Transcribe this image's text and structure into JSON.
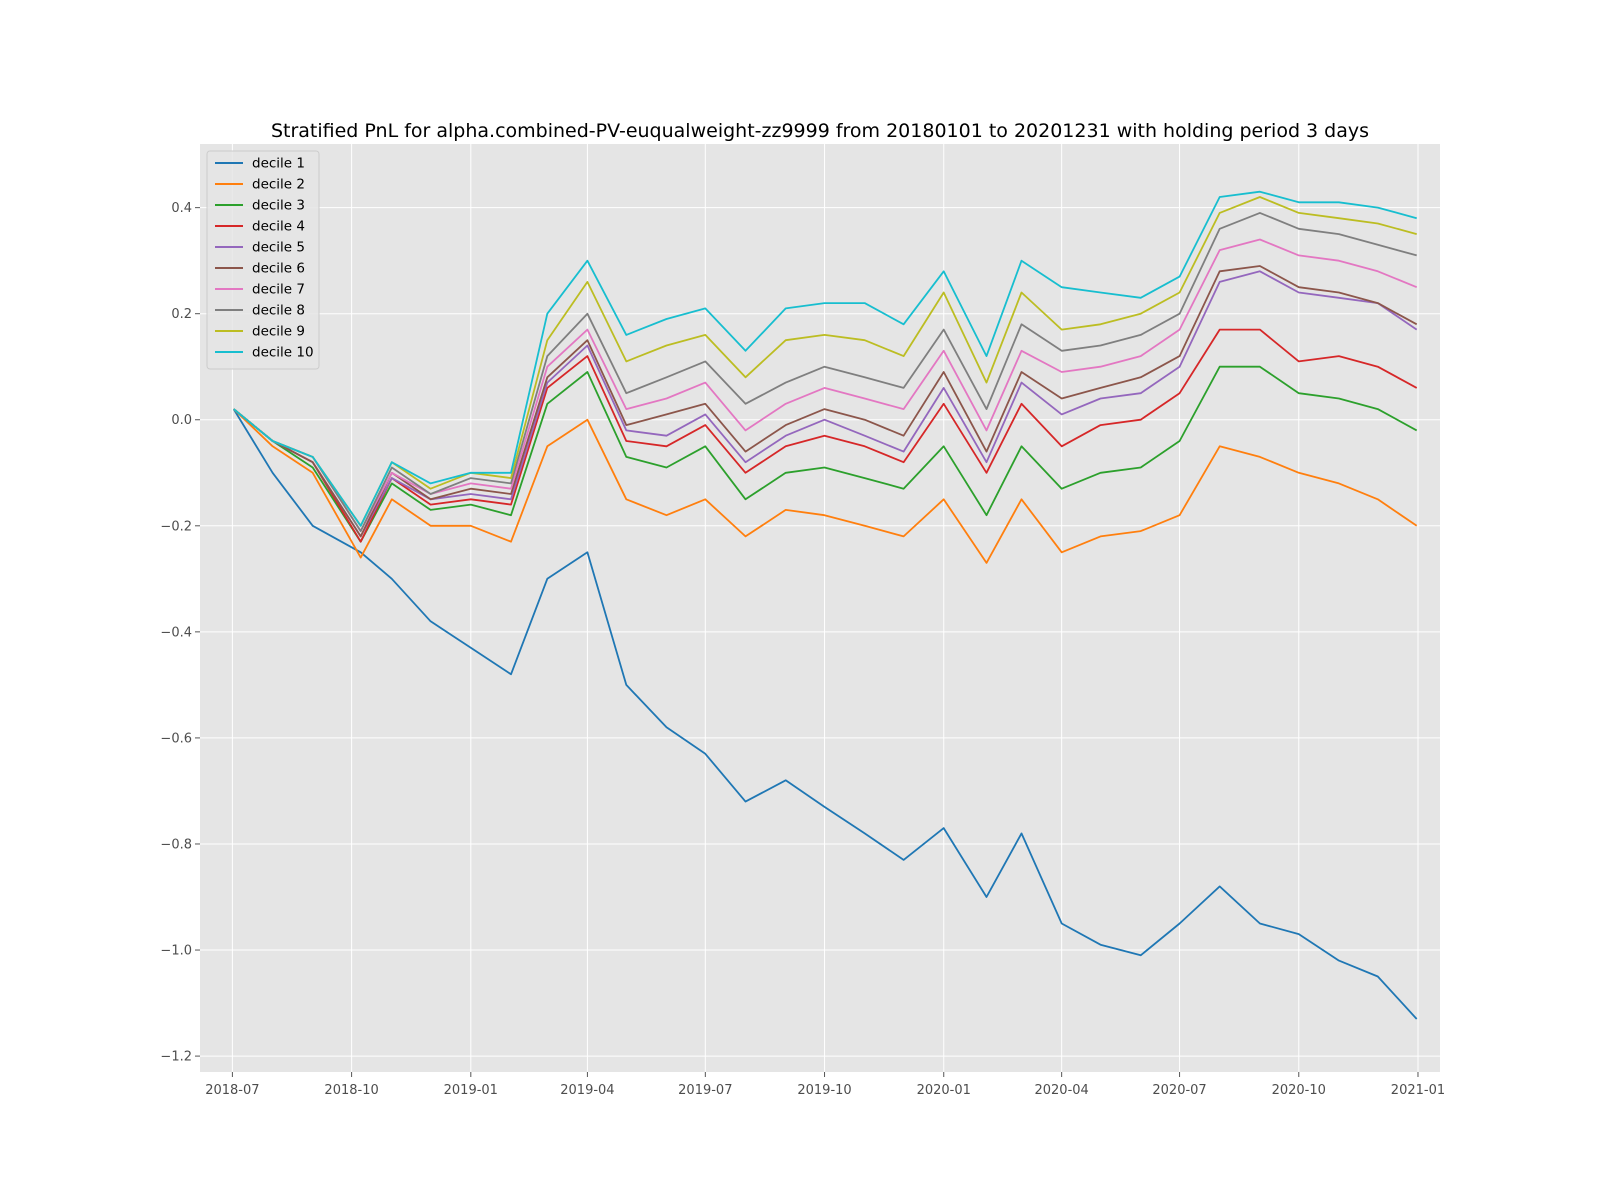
{
  "chart_data": {
    "type": "line",
    "title": "Stratified PnL for alpha.combined-PV-euqualweight-zz9999 from 20180101 to 20201231 with holding period 3 days",
    "xlabel": "",
    "ylabel": "",
    "grid": true,
    "legend_position": "top-left",
    "x_ticks": [
      "2018-07",
      "2018-10",
      "2019-01",
      "2019-04",
      "2019-07",
      "2019-10",
      "2020-01",
      "2020-04",
      "2020-07",
      "2020-10",
      "2021-01"
    ],
    "y_ticks": [
      "−1.2",
      "−1.0",
      "−0.8",
      "−0.6",
      "−0.4",
      "−0.2",
      "0.0",
      "0.2",
      "0.4"
    ],
    "xlim": [
      "2018-06-06",
      "2021-01-18"
    ],
    "ylim": [
      -1.23,
      0.52
    ],
    "x": [
      "2018-07-02",
      "2018-08-01",
      "2018-09-01",
      "2018-10-08",
      "2018-11-01",
      "2018-12-01",
      "2019-01-01",
      "2019-02-01",
      "2019-03-01",
      "2019-04-01",
      "2019-05-01",
      "2019-06-01",
      "2019-07-01",
      "2019-08-01",
      "2019-09-01",
      "2019-10-01",
      "2019-11-01",
      "2019-12-01",
      "2020-01-01",
      "2020-02-03",
      "2020-03-01",
      "2020-04-01",
      "2020-05-01",
      "2020-06-01",
      "2020-07-01",
      "2020-08-01",
      "2020-09-01",
      "2020-10-01",
      "2020-11-01",
      "2020-12-01",
      "2020-12-31"
    ],
    "series": [
      {
        "name": "decile 1",
        "color": "#1f77b4",
        "values": [
          0.02,
          -0.1,
          -0.2,
          -0.25,
          -0.3,
          -0.38,
          -0.43,
          -0.48,
          -0.3,
          -0.25,
          -0.5,
          -0.58,
          -0.63,
          -0.72,
          -0.68,
          -0.73,
          -0.78,
          -0.83,
          -0.77,
          -0.9,
          -0.78,
          -0.95,
          -0.99,
          -1.01,
          -0.95,
          -0.88,
          -0.95,
          -0.97,
          -1.02,
          -1.05,
          -1.13
        ]
      },
      {
        "name": "decile 2",
        "color": "#ff7f0e",
        "values": [
          0.02,
          -0.05,
          -0.1,
          -0.26,
          -0.15,
          -0.2,
          -0.2,
          -0.23,
          -0.05,
          0.0,
          -0.15,
          -0.18,
          -0.15,
          -0.22,
          -0.17,
          -0.18,
          -0.2,
          -0.22,
          -0.15,
          -0.27,
          -0.15,
          -0.25,
          -0.22,
          -0.21,
          -0.18,
          -0.05,
          -0.07,
          -0.1,
          -0.12,
          -0.15,
          -0.2
        ]
      },
      {
        "name": "decile 3",
        "color": "#2ca02c",
        "values": [
          0.02,
          -0.04,
          -0.09,
          -0.23,
          -0.12,
          -0.17,
          -0.16,
          -0.18,
          0.03,
          0.09,
          -0.07,
          -0.09,
          -0.05,
          -0.15,
          -0.1,
          -0.09,
          -0.11,
          -0.13,
          -0.05,
          -0.18,
          -0.05,
          -0.13,
          -0.1,
          -0.09,
          -0.04,
          0.1,
          0.1,
          0.05,
          0.04,
          0.02,
          -0.02
        ]
      },
      {
        "name": "decile 4",
        "color": "#d62728",
        "values": [
          0.02,
          -0.04,
          -0.08,
          -0.23,
          -0.11,
          -0.16,
          -0.15,
          -0.16,
          0.06,
          0.12,
          -0.04,
          -0.05,
          -0.01,
          -0.1,
          -0.05,
          -0.03,
          -0.05,
          -0.08,
          0.03,
          -0.1,
          0.03,
          -0.05,
          -0.01,
          0.0,
          0.05,
          0.17,
          0.17,
          0.11,
          0.12,
          0.1,
          0.06
        ]
      },
      {
        "name": "decile 5",
        "color": "#9467bd",
        "values": [
          0.02,
          -0.04,
          -0.08,
          -0.22,
          -0.11,
          -0.15,
          -0.14,
          -0.15,
          0.07,
          0.14,
          -0.02,
          -0.03,
          0.01,
          -0.08,
          -0.03,
          0.0,
          -0.03,
          -0.06,
          0.06,
          -0.08,
          0.07,
          0.01,
          0.04,
          0.05,
          0.1,
          0.26,
          0.28,
          0.24,
          0.23,
          0.22,
          0.17
        ]
      },
      {
        "name": "decile 6",
        "color": "#8c564b",
        "values": [
          0.02,
          -0.04,
          -0.08,
          -0.22,
          -0.1,
          -0.15,
          -0.13,
          -0.14,
          0.08,
          0.15,
          -0.01,
          0.01,
          0.03,
          -0.06,
          -0.01,
          0.02,
          0.0,
          -0.03,
          0.09,
          -0.06,
          0.09,
          0.04,
          0.06,
          0.08,
          0.12,
          0.28,
          0.29,
          0.25,
          0.24,
          0.22,
          0.18
        ]
      },
      {
        "name": "decile 7",
        "color": "#e377c2",
        "values": [
          0.02,
          -0.04,
          -0.07,
          -0.21,
          -0.1,
          -0.14,
          -0.12,
          -0.13,
          0.1,
          0.17,
          0.02,
          0.04,
          0.07,
          -0.02,
          0.03,
          0.06,
          0.04,
          0.02,
          0.13,
          -0.02,
          0.13,
          0.09,
          0.1,
          0.12,
          0.17,
          0.32,
          0.34,
          0.31,
          0.3,
          0.28,
          0.25
        ]
      },
      {
        "name": "decile 8",
        "color": "#7f7f7f",
        "values": [
          0.02,
          -0.04,
          -0.07,
          -0.21,
          -0.09,
          -0.14,
          -0.11,
          -0.12,
          0.12,
          0.2,
          0.05,
          0.08,
          0.11,
          0.03,
          0.07,
          0.1,
          0.08,
          0.06,
          0.17,
          0.02,
          0.18,
          0.13,
          0.14,
          0.16,
          0.2,
          0.36,
          0.39,
          0.36,
          0.35,
          0.33,
          0.31
        ]
      },
      {
        "name": "decile 9",
        "color": "#bcbd22",
        "values": [
          0.02,
          -0.04,
          -0.07,
          -0.2,
          -0.08,
          -0.13,
          -0.1,
          -0.11,
          0.15,
          0.26,
          0.11,
          0.14,
          0.16,
          0.08,
          0.15,
          0.16,
          0.15,
          0.12,
          0.24,
          0.07,
          0.24,
          0.17,
          0.18,
          0.2,
          0.24,
          0.39,
          0.42,
          0.39,
          0.38,
          0.37,
          0.35
        ]
      },
      {
        "name": "decile 10",
        "color": "#17becf",
        "values": [
          0.02,
          -0.04,
          -0.07,
          -0.2,
          -0.08,
          -0.12,
          -0.1,
          -0.1,
          0.2,
          0.3,
          0.16,
          0.19,
          0.21,
          0.13,
          0.21,
          0.22,
          0.22,
          0.18,
          0.28,
          0.12,
          0.3,
          0.25,
          0.24,
          0.23,
          0.27,
          0.42,
          0.43,
          0.41,
          0.41,
          0.4,
          0.38
        ]
      }
    ]
  }
}
